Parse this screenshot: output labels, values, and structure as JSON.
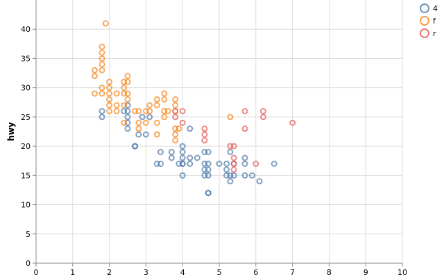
{
  "chart_data": {
    "type": "scatter",
    "title": "",
    "xlabel": "",
    "ylabel": "hwy",
    "xlim": [
      0,
      10
    ],
    "ylim": [
      0,
      45
    ],
    "x_ticks": [
      "0",
      "1",
      "2",
      "3",
      "4",
      "5",
      "6",
      "7",
      "8",
      "9",
      "10"
    ],
    "y_ticks": [
      "0",
      "5",
      "10",
      "15",
      "20",
      "25",
      "30",
      "35",
      "40"
    ],
    "grid": true,
    "legend_position": "top-right",
    "marker": "open-circle",
    "series": [
      {
        "name": "4",
        "color": "#4c78a8",
        "points": [
          [
            1.8,
            26
          ],
          [
            1.8,
            25
          ],
          [
            2.5,
            26
          ],
          [
            2.5,
            27
          ],
          [
            2.5,
            25
          ],
          [
            2.5,
            24
          ],
          [
            2.5,
            23
          ],
          [
            2.4,
            26
          ],
          [
            2.8,
            22
          ],
          [
            2.7,
            20
          ],
          [
            2.7,
            20
          ],
          [
            2.9,
            25
          ],
          [
            3.0,
            22
          ],
          [
            3.1,
            25
          ],
          [
            3.3,
            17
          ],
          [
            3.4,
            17
          ],
          [
            3.4,
            19
          ],
          [
            3.7,
            18
          ],
          [
            3.7,
            19
          ],
          [
            3.9,
            17
          ],
          [
            4.0,
            17
          ],
          [
            4.0,
            18
          ],
          [
            4.0,
            19
          ],
          [
            4.0,
            20
          ],
          [
            4.0,
            15
          ],
          [
            4.0,
            17
          ],
          [
            4.2,
            17
          ],
          [
            4.2,
            18
          ],
          [
            4.2,
            23
          ],
          [
            4.4,
            18
          ],
          [
            4.6,
            17
          ],
          [
            4.6,
            19
          ],
          [
            4.6,
            16
          ],
          [
            4.6,
            15
          ],
          [
            4.7,
            17
          ],
          [
            4.7,
            16
          ],
          [
            4.7,
            15
          ],
          [
            4.7,
            12
          ],
          [
            4.7,
            12
          ],
          [
            4.7,
            19
          ],
          [
            5.0,
            17
          ],
          [
            5.2,
            17
          ],
          [
            5.2,
            16
          ],
          [
            5.2,
            15
          ],
          [
            5.3,
            14
          ],
          [
            5.3,
            15
          ],
          [
            5.3,
            19
          ],
          [
            5.4,
            17
          ],
          [
            5.4,
            15
          ],
          [
            5.7,
            17
          ],
          [
            5.7,
            18
          ],
          [
            5.7,
            15
          ],
          [
            5.9,
            15
          ],
          [
            6.1,
            14
          ],
          [
            6.5,
            17
          ]
        ]
      },
      {
        "name": "f",
        "color": "#f58518",
        "points": [
          [
            1.6,
            33
          ],
          [
            1.6,
            32
          ],
          [
            1.6,
            29
          ],
          [
            1.8,
            37
          ],
          [
            1.8,
            36
          ],
          [
            1.8,
            35
          ],
          [
            1.8,
            34
          ],
          [
            1.8,
            33
          ],
          [
            1.8,
            30
          ],
          [
            1.8,
            29
          ],
          [
            1.9,
            41
          ],
          [
            2.0,
            31
          ],
          [
            2.0,
            30
          ],
          [
            2.0,
            29
          ],
          [
            2.0,
            28
          ],
          [
            2.0,
            27
          ],
          [
            2.0,
            26
          ],
          [
            2.2,
            29
          ],
          [
            2.2,
            27
          ],
          [
            2.2,
            26
          ],
          [
            2.4,
            31
          ],
          [
            2.4,
            30
          ],
          [
            2.4,
            29
          ],
          [
            2.4,
            27
          ],
          [
            2.4,
            24
          ],
          [
            2.5,
            32
          ],
          [
            2.5,
            31
          ],
          [
            2.5,
            29
          ],
          [
            2.5,
            28
          ],
          [
            2.7,
            26
          ],
          [
            2.8,
            26
          ],
          [
            2.8,
            24
          ],
          [
            2.8,
            23
          ],
          [
            3.0,
            26
          ],
          [
            3.0,
            24
          ],
          [
            3.1,
            27
          ],
          [
            3.1,
            26
          ],
          [
            3.3,
            28
          ],
          [
            3.3,
            27
          ],
          [
            3.3,
            24
          ],
          [
            3.3,
            22
          ],
          [
            3.5,
            29
          ],
          [
            3.5,
            28
          ],
          [
            3.5,
            26
          ],
          [
            3.5,
            25
          ],
          [
            3.6,
            26
          ],
          [
            3.8,
            28
          ],
          [
            3.8,
            27
          ],
          [
            3.8,
            26
          ],
          [
            3.8,
            23
          ],
          [
            3.8,
            22
          ],
          [
            3.8,
            21
          ],
          [
            3.9,
            23
          ],
          [
            5.3,
            25
          ]
        ]
      },
      {
        "name": "r",
        "color": "#e45756",
        "points": [
          [
            3.8,
            26
          ],
          [
            3.8,
            25
          ],
          [
            4.0,
            26
          ],
          [
            4.0,
            24
          ],
          [
            4.6,
            23
          ],
          [
            4.6,
            22
          ],
          [
            4.6,
            21
          ],
          [
            5.3,
            20
          ],
          [
            5.4,
            20
          ],
          [
            5.4,
            18
          ],
          [
            5.4,
            17
          ],
          [
            5.4,
            16
          ],
          [
            5.7,
            26
          ],
          [
            5.7,
            23
          ],
          [
            6.0,
            17
          ],
          [
            6.2,
            26
          ],
          [
            6.2,
            25
          ],
          [
            7.0,
            24
          ]
        ]
      }
    ]
  }
}
